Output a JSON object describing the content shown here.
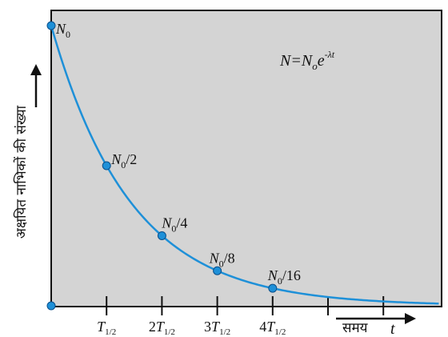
{
  "chart_data": {
    "type": "line",
    "title": "",
    "equation": {
      "lhs": "N=N",
      "sub": "o",
      "base": "e",
      "exp": "-λt"
    },
    "ylabel": "अक्षयित नाभिकों की संख्या",
    "xlabel": {
      "text": "समय",
      "symbol": "t"
    },
    "grid": false,
    "x_range": [
      0,
      7
    ],
    "y_range": [
      0,
      1
    ],
    "x_ticks": [
      {
        "x": 1,
        "base": "T",
        "sub": "1/2",
        "coef": ""
      },
      {
        "x": 2,
        "base": "T",
        "sub": "1/2",
        "coef": "2"
      },
      {
        "x": 3,
        "base": "T",
        "sub": "1/2",
        "coef": "3"
      },
      {
        "x": 4,
        "base": "T",
        "sub": "1/2",
        "coef": "4"
      },
      {
        "x": 5,
        "base": "",
        "sub": "",
        "coef": ""
      },
      {
        "x": 6,
        "base": "",
        "sub": "",
        "coef": ""
      }
    ],
    "series": [
      {
        "curve": "exponential-decay",
        "color": "#1e90d8",
        "x_end": 7,
        "points": [
          {
            "x": 0,
            "y": 1,
            "label_base": "N",
            "label_sub": "0",
            "label_rest": ""
          },
          {
            "x": 1,
            "y": 0.5,
            "label_base": "N",
            "label_sub": "0",
            "label_rest": "/2"
          },
          {
            "x": 2,
            "y": 0.25,
            "label_base": "N",
            "label_sub": "0",
            "label_rest": "/4"
          },
          {
            "x": 3,
            "y": 0.125,
            "label_base": "N",
            "label_sub": "0",
            "label_rest": "/8"
          },
          {
            "x": 4,
            "y": 0.0625,
            "label_base": "N",
            "label_sub": "0",
            "label_rest": "/16"
          }
        ]
      }
    ],
    "colors": {
      "plot_background": "#d4d4d4",
      "curve": "#1e90d8",
      "point_fill": "#1e90d8",
      "point_stroke": "#0b4f8a",
      "axes": "#111111"
    }
  }
}
